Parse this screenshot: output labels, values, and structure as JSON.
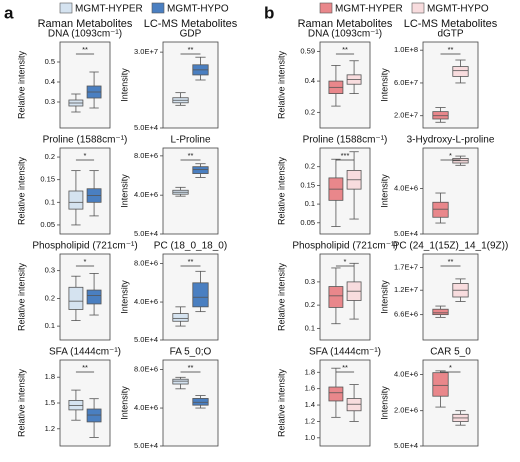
{
  "panels": [
    {
      "letter": "a",
      "headers": [
        "Raman Metabolites",
        "LC-MS Metabolites"
      ]
    },
    {
      "letter": "b",
      "headers": [
        "Raman Metabolites",
        "LC-MS Metabolites"
      ]
    }
  ],
  "chart_data": [
    {
      "type": "box",
      "title": "DNA (1093cm⁻¹)",
      "ylabel": "Relative intensity",
      "annotation": "**",
      "ylim": [
        0.17,
        0.6
      ],
      "yticks": [
        0.3,
        0.4,
        0.5
      ],
      "series": [
        {
          "name": "MGMT-HYPER",
          "color": "#d5e3f0",
          "min": 0.25,
          "q1": 0.28,
          "median": 0.295,
          "q3": 0.31,
          "max": 0.34
        },
        {
          "name": "MGMT-HYPO",
          "color": "#4a7fc1",
          "min": 0.27,
          "q1": 0.32,
          "median": 0.35,
          "q3": 0.38,
          "max": 0.45
        }
      ]
    },
    {
      "type": "box",
      "title": "GDP",
      "ylabel": "Intensity",
      "annotation": "**",
      "ylim": [
        50000,
        34000000
      ],
      "yticks": [
        {
          "value": 50000,
          "label": "5.0E+4"
        },
        {
          "value": 30000000,
          "label": "3.0E+7"
        }
      ],
      "series": [
        {
          "name": "MGMT-HYPER",
          "color": "#d5e3f0",
          "min": 9000000,
          "q1": 10000000,
          "median": 11000000,
          "q3": 12000000,
          "max": 14000000
        },
        {
          "name": "MGMT-HYPO",
          "color": "#4a7fc1",
          "min": 19000000,
          "q1": 21000000,
          "median": 23000000,
          "q3": 25000000,
          "max": 28000000
        }
      ]
    },
    {
      "type": "box",
      "title": "Proline (1588cm⁻¹)",
      "ylabel": "Relative intensity",
      "annotation": "*",
      "ylim": [
        0.03,
        0.22
      ],
      "yticks": [
        0.05,
        0.1,
        0.15,
        0.2
      ],
      "series": [
        {
          "name": "MGMT-HYPER",
          "color": "#d5e3f0",
          "min": 0.05,
          "q1": 0.085,
          "median": 0.1,
          "q3": 0.125,
          "max": 0.17
        },
        {
          "name": "MGMT-HYPO",
          "color": "#4a7fc1",
          "min": 0.07,
          "q1": 0.1,
          "median": 0.115,
          "q3": 0.13,
          "max": 0.17
        }
      ]
    },
    {
      "type": "box",
      "title": "L-Proline",
      "ylabel": "Intensity",
      "annotation": "**",
      "ylim": [
        50000,
        8800000
      ],
      "yticks": [
        {
          "value": 50000,
          "label": "5.0E+4"
        },
        {
          "value": 4000000,
          "label": "4.0E+6"
        },
        {
          "value": 8000000,
          "label": "8.0E+6"
        }
      ],
      "series": [
        {
          "name": "MGMT-HYPER",
          "color": "#d5e3f0",
          "min": 3900000,
          "q1": 4100000,
          "median": 4300000,
          "q3": 4500000,
          "max": 4800000
        },
        {
          "name": "MGMT-HYPO",
          "color": "#4a7fc1",
          "min": 5800000,
          "q1": 6200000,
          "median": 6600000,
          "q3": 6900000,
          "max": 7200000
        }
      ]
    },
    {
      "type": "box",
      "title": "Phospholipid (721cm⁻¹)",
      "ylabel": "Relative intensity",
      "annotation": "*",
      "ylim": [
        0.05,
        0.36
      ],
      "yticks": [
        0.1,
        0.2,
        0.3
      ],
      "series": [
        {
          "name": "MGMT-HYPER",
          "color": "#d5e3f0",
          "min": 0.12,
          "q1": 0.16,
          "median": 0.19,
          "q3": 0.24,
          "max": 0.28
        },
        {
          "name": "MGMT-HYPO",
          "color": "#4a7fc1",
          "min": 0.14,
          "q1": 0.18,
          "median": 0.21,
          "q3": 0.23,
          "max": 0.29
        }
      ]
    },
    {
      "type": "box",
      "title": "PC (18_0_18_0)",
      "ylabel": "Intensity",
      "annotation": "**",
      "ylim": [
        50000,
        9000000
      ],
      "yticks": [
        {
          "value": 50000,
          "label": "5.0E+4"
        },
        {
          "value": 4000000,
          "label": "4.0E+6"
        },
        {
          "value": 8000000,
          "label": "8.0E+6"
        }
      ],
      "series": [
        {
          "name": "MGMT-HYPER",
          "color": "#d5e3f0",
          "min": 1500000,
          "q1": 2000000,
          "median": 2300000,
          "q3": 2800000,
          "max": 3500000
        },
        {
          "name": "MGMT-HYPO",
          "color": "#4a7fc1",
          "min": 3000000,
          "q1": 3500000,
          "median": 4500000,
          "q3": 6000000,
          "max": 7200000
        }
      ]
    },
    {
      "type": "box",
      "title": "SFA (1444cm⁻¹)",
      "ylabel": "Relative intensity",
      "annotation": "**",
      "ylim": [
        1.0,
        2.0
      ],
      "yticks": [
        1.2,
        1.5,
        1.8
      ],
      "series": [
        {
          "name": "MGMT-HYPER",
          "color": "#d5e3f0",
          "min": 1.3,
          "q1": 1.42,
          "median": 1.47,
          "q3": 1.53,
          "max": 1.65
        },
        {
          "name": "MGMT-HYPO",
          "color": "#4a7fc1",
          "min": 1.1,
          "q1": 1.28,
          "median": 1.36,
          "q3": 1.43,
          "max": 1.55
        }
      ]
    },
    {
      "type": "box",
      "title": "FA 5_0;O",
      "ylabel": "Intensity",
      "annotation": "**",
      "ylim": [
        50000,
        9000000
      ],
      "yticks": [
        {
          "value": 50000,
          "label": "5.0E+4"
        },
        {
          "value": 4000000,
          "label": "4.0E+6"
        },
        {
          "value": 8000000,
          "label": "8.0E+6"
        }
      ],
      "series": [
        {
          "name": "MGMT-HYPER",
          "color": "#d5e3f0",
          "min": 6000000,
          "q1": 6500000,
          "median": 6800000,
          "q3": 7000000,
          "max": 7200000
        },
        {
          "name": "MGMT-HYPO",
          "color": "#4a7fc1",
          "min": 4000000,
          "q1": 4300000,
          "median": 4600000,
          "q3": 5000000,
          "max": 5300000
        }
      ]
    },
    {
      "type": "box",
      "title": "DNA (1093cm⁻¹)",
      "ylabel": "Relative intensity",
      "annotation": "**",
      "ylim": [
        0.1,
        0.65
      ],
      "yticks": [
        0.2,
        0.4,
        0.59
      ],
      "series": [
        {
          "name": "MGMT-HYPER",
          "color": "#e9878b",
          "min": 0.24,
          "q1": 0.32,
          "median": 0.36,
          "q3": 0.4,
          "max": 0.5
        },
        {
          "name": "MGMT-HYPO",
          "color": "#f8dcde",
          "min": 0.32,
          "q1": 0.38,
          "median": 0.41,
          "q3": 0.44,
          "max": 0.53
        }
      ]
    },
    {
      "type": "box",
      "title": "dGTP",
      "ylabel": "Intensity",
      "annotation": "**",
      "ylim": [
        5000000,
        110000000
      ],
      "yticks": [
        {
          "value": 20000000,
          "label": "2.0E+7"
        },
        {
          "value": 60000000,
          "label": "6.0E+7"
        },
        {
          "value": 100000000,
          "label": "1.0E+8"
        }
      ],
      "series": [
        {
          "name": "MGMT-HYPER",
          "color": "#e9878b",
          "min": 12000000,
          "q1": 16000000,
          "median": 20000000,
          "q3": 25000000,
          "max": 30000000
        },
        {
          "name": "MGMT-HYPO",
          "color": "#f8dcde",
          "min": 60000000,
          "q1": 68000000,
          "median": 75000000,
          "q3": 80000000,
          "max": 88000000
        }
      ]
    },
    {
      "type": "box",
      "title": "Proline (1588cm⁻¹)",
      "ylabel": "Relative intensity",
      "annotation": "***",
      "ylim": [
        0.02,
        0.25
      ],
      "yticks": [
        0.05,
        0.1,
        0.15,
        0.2
      ],
      "series": [
        {
          "name": "MGMT-HYPER",
          "color": "#e9878b",
          "min": 0.04,
          "q1": 0.11,
          "median": 0.14,
          "q3": 0.17,
          "max": 0.22
        },
        {
          "name": "MGMT-HYPO",
          "color": "#f8dcde",
          "min": 0.06,
          "q1": 0.14,
          "median": 0.165,
          "q3": 0.19,
          "max": 0.24
        }
      ]
    },
    {
      "type": "box",
      "title": "3-Hydroxy-L-proline",
      "ylabel": "Intensity",
      "annotation": "*",
      "ylim": [
        50000,
        7500000
      ],
      "yticks": [
        {
          "value": 50000,
          "label": "5.0E+4"
        },
        {
          "value": 4000000,
          "label": "4.0E+6"
        }
      ],
      "series": [
        {
          "name": "MGMT-HYPER",
          "color": "#e9878b",
          "min": 1000000,
          "q1": 1500000,
          "median": 2200000,
          "q3": 2800000,
          "max": 3600000
        },
        {
          "name": "MGMT-HYPO",
          "color": "#f8dcde",
          "min": 6000000,
          "q1": 6200000,
          "median": 6400000,
          "q3": 6600000,
          "max": 6800000
        }
      ]
    },
    {
      "type": "box",
      "title": "Phospholipid (721cm⁻¹)",
      "ylabel": "Relative intensity",
      "annotation": "*",
      "ylim": [
        0.05,
        0.42
      ],
      "yticks": [
        0.1,
        0.2,
        0.3
      ],
      "series": [
        {
          "name": "MGMT-HYPER",
          "color": "#e9878b",
          "min": 0.12,
          "q1": 0.19,
          "median": 0.24,
          "q3": 0.28,
          "max": 0.36
        },
        {
          "name": "MGMT-HYPO",
          "color": "#f8dcde",
          "min": 0.14,
          "q1": 0.22,
          "median": 0.26,
          "q3": 0.3,
          "max": 0.38
        }
      ]
    },
    {
      "type": "box",
      "title": "PC (24_1(15Z)_14_1(9Z))",
      "ylabel": "Intensity",
      "annotation": "**",
      "ylim": [
        1000000,
        20000000
      ],
      "yticks": [
        {
          "value": 6600000,
          "label": "6.6E+6"
        },
        {
          "value": 12000000,
          "label": "1.2E+7"
        },
        {
          "value": 17000000,
          "label": "1.7E+7"
        }
      ],
      "series": [
        {
          "name": "MGMT-HYPER",
          "color": "#e9878b",
          "min": 6000000,
          "q1": 6600000,
          "median": 7000000,
          "q3": 7800000,
          "max": 8500000
        },
        {
          "name": "MGMT-HYPO",
          "color": "#f8dcde",
          "min": 9500000,
          "q1": 10500000,
          "median": 12000000,
          "q3": 13500000,
          "max": 14500000
        }
      ]
    },
    {
      "type": "box",
      "title": "SFA (1444cm⁻¹)",
      "ylabel": "Relative intensity",
      "annotation": "**",
      "ylim": [
        0.9,
        1.95
      ],
      "yticks": [
        {
          "value": 1,
          "label": "1.0"
        },
        1.2,
        1.4,
        1.6,
        1.8
      ],
      "series": [
        {
          "name": "MGMT-HYPER",
          "color": "#e9878b",
          "min": 1.25,
          "q1": 1.45,
          "median": 1.55,
          "q3": 1.62,
          "max": 1.85
        },
        {
          "name": "MGMT-HYPO",
          "color": "#f8dcde",
          "min": 1.2,
          "q1": 1.33,
          "median": 1.41,
          "q3": 1.48,
          "max": 1.65
        }
      ]
    },
    {
      "type": "box",
      "title": "CAR 5_0",
      "ylabel": "Intensity",
      "annotation": "*",
      "ylim": [
        50000,
        4800000
      ],
      "yticks": [
        {
          "value": 50000,
          "label": "5.0E+4"
        },
        {
          "value": 2000000,
          "label": "2.0E+6"
        },
        {
          "value": 4000000,
          "label": "4.0E+6"
        }
      ],
      "series": [
        {
          "name": "MGMT-HYPER",
          "color": "#e9878b",
          "min": 2200000,
          "q1": 2800000,
          "median": 3400000,
          "q3": 4100000,
          "max": 4200000
        },
        {
          "name": "MGMT-HYPO",
          "color": "#f8dcde",
          "min": 1200000,
          "q1": 1400000,
          "median": 1600000,
          "q3": 1800000,
          "max": 2000000
        }
      ]
    }
  ]
}
